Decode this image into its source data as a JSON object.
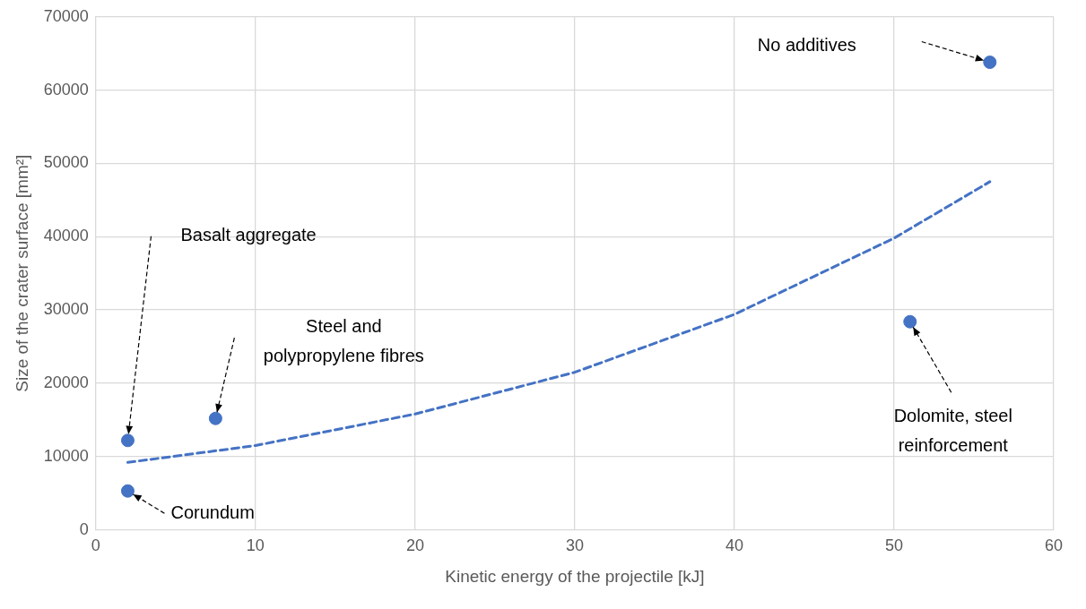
{
  "chart_data": {
    "type": "scatter",
    "xlabel": "Kinetic energy of the projectile [kJ]",
    "ylabel": "Size of the crater surface [mm²]",
    "xlim": [
      0,
      60
    ],
    "xticks": [
      0,
      10,
      20,
      30,
      40,
      50,
      60
    ],
    "ylim": [
      0,
      70000
    ],
    "yticks": [
      0,
      10000,
      20000,
      30000,
      40000,
      50000,
      60000,
      70000
    ],
    "grid": true,
    "legend": false,
    "marker": "circle",
    "series": [
      {
        "type": "scatter",
        "color": "#4472c4",
        "x": [
          2,
          2,
          7.5,
          51,
          56
        ],
        "values": [
          12200,
          5300,
          15200,
          28400,
          63800
        ]
      },
      {
        "type": "line",
        "color": "#4472c4",
        "line_style": "dashed",
        "marker": "none",
        "x": [
          2,
          10,
          20,
          30,
          40,
          50,
          56
        ],
        "values": [
          9200,
          11500,
          15800,
          21500,
          29400,
          39800,
          47500
        ]
      }
    ],
    "annotations": [
      "No additives",
      "Basalt aggregate",
      "Steel and polypropylene fibres",
      {
        "text": "Dolomite, steel reinforcement",
        "x": 51,
        "y": 28400
      },
      {
        "text": "Corundum",
        "x": 2,
        "y": 5300
      }
    ]
  }
}
